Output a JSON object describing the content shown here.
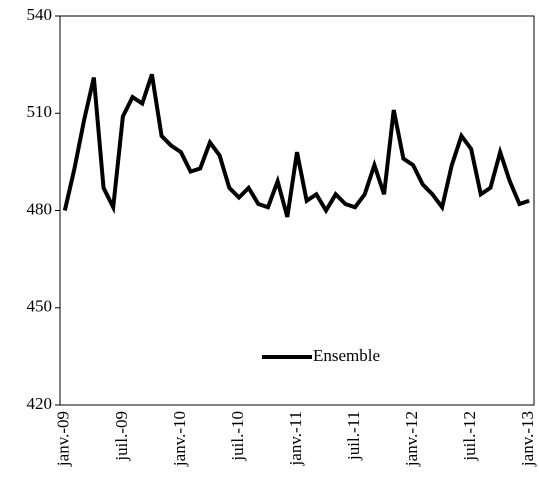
{
  "chart_data": {
    "type": "line",
    "categories": [
      "janv.-09",
      null,
      null,
      null,
      null,
      null,
      "juil.-09",
      null,
      null,
      null,
      null,
      null,
      "janv.-10",
      null,
      null,
      null,
      null,
      null,
      "juil.-10",
      null,
      null,
      null,
      null,
      null,
      "janv.-11",
      null,
      null,
      null,
      null,
      null,
      "juil.-11",
      null,
      null,
      null,
      null,
      null,
      "janv.-12",
      null,
      null,
      null,
      null,
      null,
      "juil.-12",
      null,
      null,
      null,
      null,
      null,
      "janv.-13"
    ],
    "series": [
      {
        "name": "Ensemble",
        "color": "#000000",
        "values": [
          480,
          493,
          508,
          521,
          487,
          481,
          509,
          515,
          513,
          522,
          503,
          500,
          498,
          492,
          493,
          501,
          497,
          487,
          484,
          487,
          482,
          481,
          489,
          478,
          498,
          483,
          485,
          480,
          485,
          482,
          481,
          485,
          494,
          485,
          511,
          496,
          494,
          488,
          485,
          481,
          494,
          503,
          499,
          485,
          487,
          498,
          489,
          482,
          483
        ]
      }
    ],
    "ylim": [
      420,
      540
    ],
    "yticks": [
      420,
      450,
      480,
      510,
      540
    ],
    "grid": false,
    "legend": "center"
  }
}
